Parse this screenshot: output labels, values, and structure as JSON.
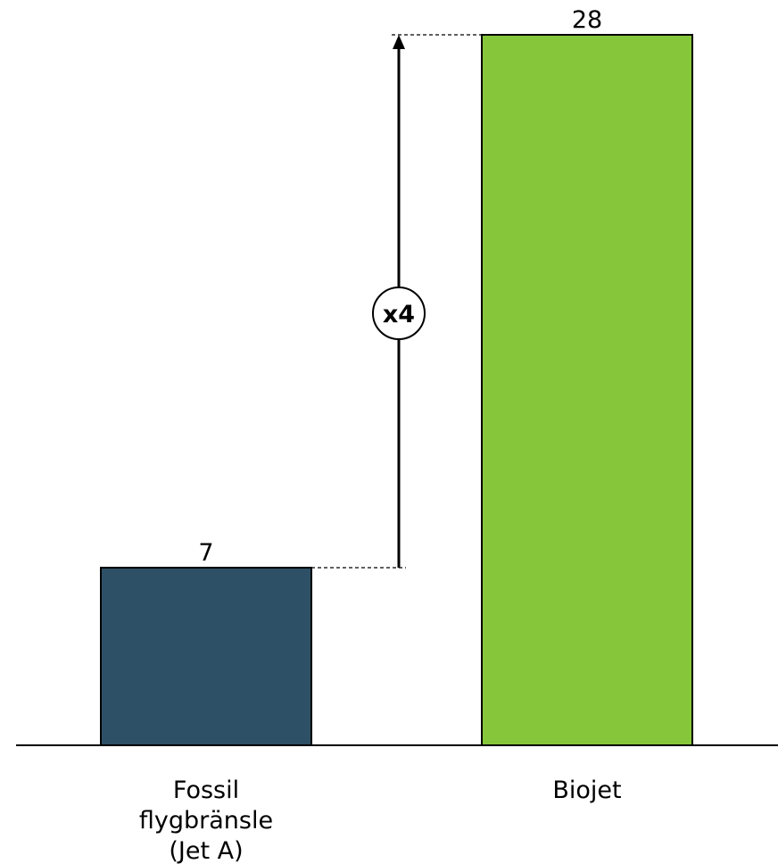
{
  "chart_data": {
    "type": "bar",
    "categories": [
      [
        "Fossil",
        "flygbränsle",
        "(Jet A)"
      ],
      [
        "Biojet"
      ]
    ],
    "values": [
      7,
      28
    ],
    "colors": [
      "#2e5066",
      "#86c63b"
    ],
    "ylim": [
      0,
      31
    ],
    "annotation": {
      "label": "x4",
      "from_category": 0,
      "to_category": 1,
      "arrow": "up"
    }
  }
}
